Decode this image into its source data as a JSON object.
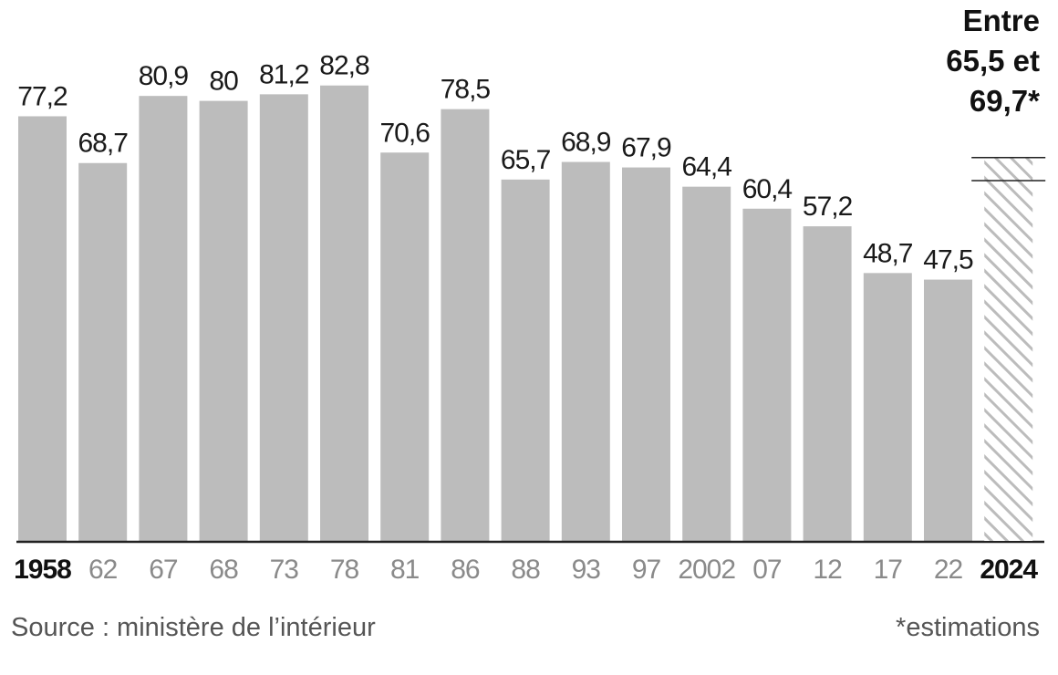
{
  "chart_data": {
    "type": "bar",
    "categories": [
      "1958",
      "62",
      "67",
      "68",
      "73",
      "78",
      "81",
      "86",
      "88",
      "93",
      "97",
      "2002",
      "07",
      "12",
      "17",
      "22",
      "2024"
    ],
    "values": [
      77.2,
      68.7,
      80.9,
      80,
      81.2,
      82.8,
      70.6,
      78.5,
      65.7,
      68.9,
      67.9,
      64.4,
      60.4,
      57.2,
      48.7,
      47.5,
      null
    ],
    "value_labels": [
      "77,2",
      "68,7",
      "80,9",
      "80",
      "81,2",
      "82,8",
      "70,6",
      "78,5",
      "65,7",
      "68,9",
      "67,9",
      "64,4",
      "60,4",
      "57,2",
      "48,7",
      "47,5",
      ""
    ],
    "bold_categories": [
      "1958",
      "2024"
    ],
    "estimate": {
      "category": "2024",
      "low": 65.5,
      "high": 69.7,
      "label_lines": [
        "Entre",
        "65,5 et",
        "69,7*"
      ]
    },
    "ylim": [
      0,
      100
    ],
    "grid": false,
    "colors": {
      "bar": "#bcbcbc",
      "hatch": "#bcbcbc",
      "axis": "#222222"
    }
  },
  "footer": {
    "source": "Source : ministère de l’intérieur",
    "note": "*estimations"
  }
}
